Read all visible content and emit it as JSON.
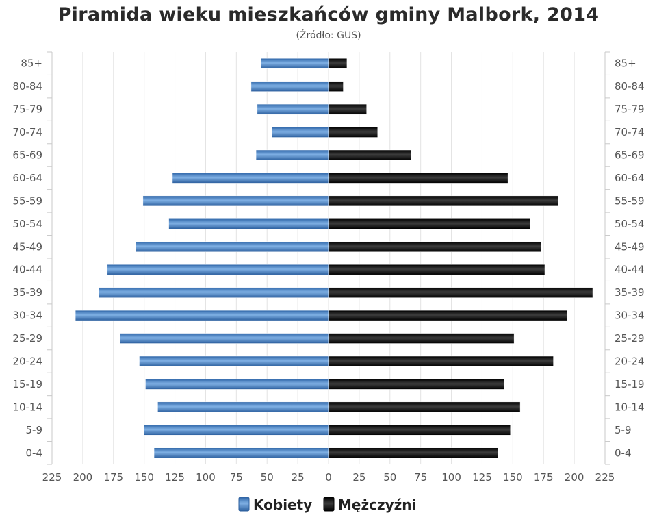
{
  "chart_data": {
    "type": "bar",
    "orientation": "horizontal-pyramid",
    "title": "Piramida wieku mieszkańców gminy Malbork, 2014",
    "subtitle": "(Źródło: GUS)",
    "categories": [
      "0-4",
      "5-9",
      "10-14",
      "15-19",
      "20-24",
      "25-29",
      "30-34",
      "35-39",
      "40-44",
      "45-49",
      "50-54",
      "55-59",
      "60-64",
      "65-69",
      "70-74",
      "75-79",
      "80-84",
      "85+"
    ],
    "x_ticks": [
      "225",
      "200",
      "175",
      "150",
      "125",
      "100",
      "75",
      "50",
      "25",
      "0",
      "25",
      "50",
      "75",
      "100",
      "125",
      "150",
      "175",
      "200",
      "225"
    ],
    "xlim": [
      -225,
      225
    ],
    "grid": true,
    "legend_position": "bottom",
    "series": [
      {
        "name": "Kobiety",
        "color": "#4a86c6",
        "values": [
          142,
          150,
          139,
          149,
          154,
          170,
          206,
          187,
          180,
          157,
          130,
          151,
          127,
          59,
          46,
          58,
          63,
          55
        ]
      },
      {
        "name": "Mężczyźni",
        "color": "#1a1a1a",
        "values": [
          138,
          148,
          156,
          143,
          183,
          151,
          194,
          215,
          176,
          173,
          164,
          187,
          146,
          67,
          40,
          31,
          12,
          15
        ]
      }
    ]
  }
}
